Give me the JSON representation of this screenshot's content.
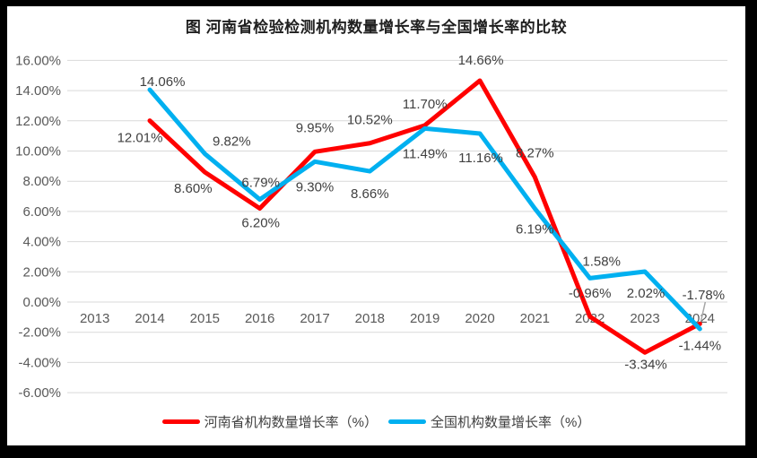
{
  "figure": {
    "frame_color": "#000000",
    "background_color": "#ffffff"
  },
  "chart_data": {
    "type": "line",
    "title": "图  河南省检验检测机构数量增长率与全国增长率的比较",
    "categories": [
      "2013",
      "2014",
      "2015",
      "2016",
      "2017",
      "2018",
      "2019",
      "2020",
      "2021",
      "2022",
      "2023",
      "2024"
    ],
    "y_axis": {
      "min": -6,
      "max": 16,
      "step": 2,
      "tick_labels": [
        "16.00%",
        "14.00%",
        "12.00%",
        "10.00%",
        "8.00%",
        "6.00%",
        "4.00%",
        "2.00%",
        "0.00%",
        "-2.00%",
        "-4.00%",
        "-6.00%"
      ]
    },
    "grid": true,
    "legend_position": "bottom",
    "series": [
      {
        "name": "河南省机构数量增长率（%）",
        "color": "#FF0000",
        "values": [
          null,
          12.01,
          8.6,
          6.2,
          9.95,
          10.52,
          11.7,
          14.66,
          8.27,
          -0.96,
          -3.34,
          -1.44
        ],
        "data_labels": [
          "",
          "12.01%",
          "8.60%",
          "6.20%",
          "9.95%",
          "10.52%",
          "11.70%",
          "14.66%",
          "8.27%",
          "-0.96%",
          "-3.34%",
          "-1.44%"
        ],
        "label_offsets": [
          [
            0,
            0
          ],
          [
            -11,
            19
          ],
          [
            -13,
            18
          ],
          [
            1,
            16
          ],
          [
            0,
            -27
          ],
          [
            0,
            -26
          ],
          [
            0,
            -24
          ],
          [
            1,
            -23
          ],
          [
            0,
            -27
          ],
          [
            0,
            -26
          ],
          [
            1,
            13
          ],
          [
            0,
            24
          ]
        ]
      },
      {
        "name": "全国机构数量增长率（%）",
        "color": "#00B0F0",
        "values": [
          null,
          14.06,
          9.82,
          6.79,
          9.3,
          8.66,
          11.49,
          11.16,
          6.19,
          1.58,
          2.02,
          -1.78
        ],
        "data_labels": [
          "",
          "14.06%",
          "9.82%",
          "6.79%",
          "9.30%",
          "8.66%",
          "11.49%",
          "11.16%",
          "6.19%",
          "1.58%",
          "2.02%",
          "-1.78%"
        ],
        "label_offsets": [
          [
            0,
            0
          ],
          [
            14,
            -9
          ],
          [
            30,
            -14
          ],
          [
            1,
            -19
          ],
          [
            0,
            28
          ],
          [
            0,
            25
          ],
          [
            0,
            28
          ],
          [
            1,
            27
          ],
          [
            0,
            23
          ],
          [
            13,
            -19
          ],
          [
            1,
            24
          ],
          [
            4,
            -38
          ]
        ]
      }
    ],
    "colors": {
      "gridline": "#D9D9D9",
      "axis_text": "#595959",
      "data_label_text": "#404040",
      "title_text": "#1f1f1f",
      "leader_line": "#A6A6A6"
    }
  }
}
